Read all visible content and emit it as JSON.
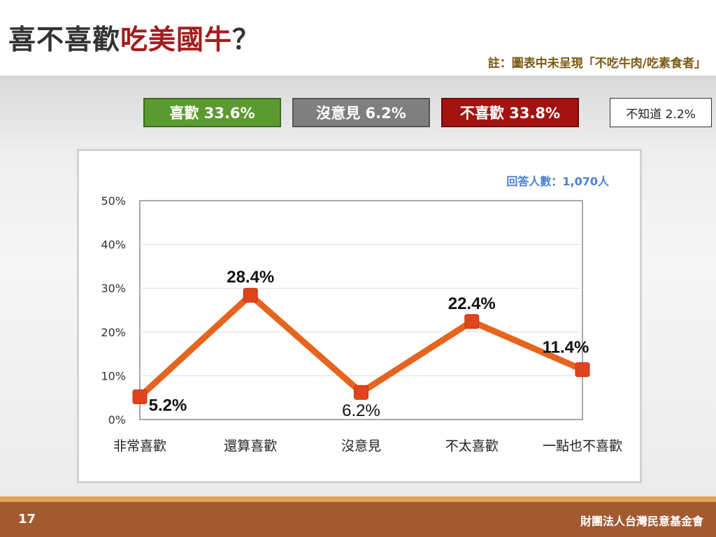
{
  "title": {
    "prefix": "喜不喜歡",
    "highlight": "吃美國牛",
    "suffix": "？"
  },
  "note": "註：圖表中未呈現「不吃牛肉/吃素食者」",
  "summary": {
    "like": "喜歡 33.6%",
    "neutral": "沒意見 6.2%",
    "dislike": "不喜歡 33.8%",
    "dont_know": "不知道 2.2%"
  },
  "respondents": "回答人數：1,070人",
  "colors": {
    "line": "#e5651f",
    "marker": "#e0441c",
    "like": "#5b9a31",
    "neutral": "#7f7f7f",
    "dislike": "#a41212",
    "accent_title": "#a51c1c"
  },
  "chart_data": {
    "type": "line",
    "categories": [
      "非常喜歡",
      "還算喜歡",
      "沒意見",
      "不太喜歡",
      "一點也不喜歡"
    ],
    "values": [
      5.2,
      28.4,
      6.2,
      22.4,
      11.4
    ],
    "data_labels": [
      "5.2%",
      "28.4%",
      "6.2%",
      "22.4%",
      "11.4%"
    ],
    "ylim": [
      0,
      50
    ],
    "yticks": [
      "0%",
      "10%",
      "20%",
      "30%",
      "40%",
      "50%"
    ],
    "grid": true
  },
  "footer": {
    "page": "17",
    "org": "財團法人台灣民意基金會"
  }
}
